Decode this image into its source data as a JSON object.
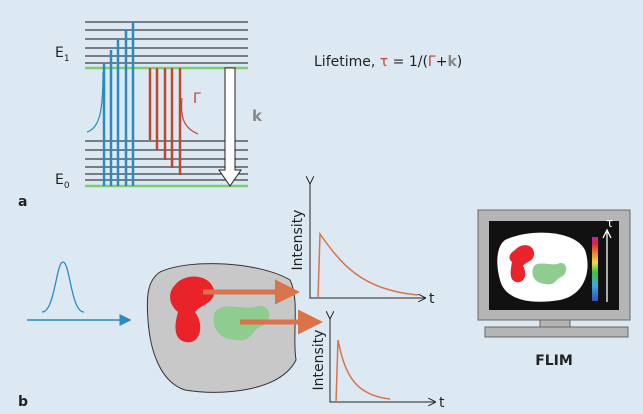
{
  "panel_a": {
    "label": "a",
    "upper_level": {
      "base": "E",
      "sub": "1"
    },
    "lower_level": {
      "base": "E",
      "sub": "0"
    },
    "radiative_rate": "Γ",
    "nonradiative_rate": "k",
    "formula": [
      "Lifetime, ",
      "τ",
      " = 1/(",
      "Γ",
      "+",
      "k",
      ")"
    ]
  },
  "panel_b": {
    "label": "b",
    "graph_1": {
      "y_label": "Intensity",
      "x_label": "t"
    },
    "graph_2": {
      "y_label": "Intensity",
      "x_label": "t"
    },
    "lifetime_axis": "τ",
    "caption": "FLIM"
  }
}
